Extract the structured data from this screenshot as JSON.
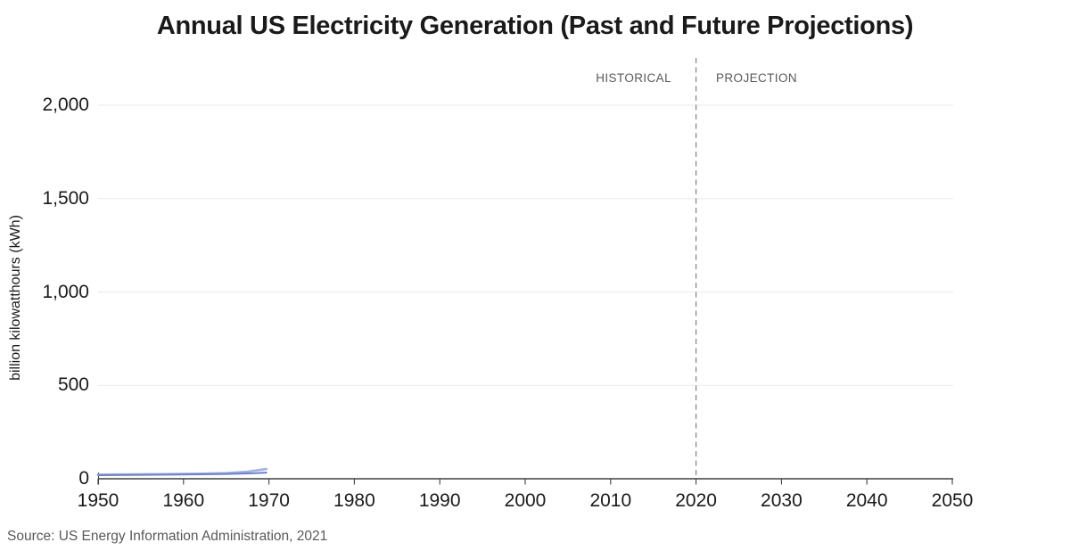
{
  "chart_data": {
    "type": "line",
    "title": "Annual US Electricity Generation (Past and Future Projections)",
    "xlabel": "",
    "ylabel": "billion kilowatthours (kWh)",
    "source": "Source: US Energy Information Administration, 2021",
    "xlim": [
      1950,
      2050
    ],
    "ylim": [
      0,
      2000
    ],
    "x_ticks": [
      1950,
      1960,
      1970,
      1980,
      1990,
      2000,
      2010,
      2020,
      2030,
      2040,
      2050
    ],
    "y_ticks": [
      0,
      500,
      1000,
      1500,
      2000
    ],
    "y_tick_labels": [
      "0",
      "500",
      "1,000",
      "1,500",
      "2,000"
    ],
    "grid": "horizontal gridlines on",
    "legend": "none",
    "divider": {
      "x": 2020,
      "style": "dashed",
      "color": "#7f7f7f",
      "left_label": "HISTORICAL",
      "right_label": "PROJECTION"
    },
    "series": [
      {
        "name": "generation-line-light",
        "color": "#a2b1e0",
        "width": 2.6,
        "x": [
          1950,
          1954,
          1958,
          1962,
          1965,
          1967.5,
          1969.7
        ],
        "values": [
          22,
          24,
          25,
          27,
          30,
          38,
          52
        ]
      },
      {
        "name": "generation-line-dark",
        "color": "#6e82c6",
        "width": 2,
        "x": [
          1950,
          1954,
          1958,
          1962,
          1965,
          1968,
          1969.7
        ],
        "values": [
          19,
          20,
          22,
          24,
          26,
          29,
          33
        ]
      }
    ],
    "colors": {
      "title": "#1a1a1a",
      "axis": "#404040",
      "gridline": "#e9e9e9",
      "tick_label": "#1a1a1a",
      "zone_label": "#595959",
      "source": "#595959"
    }
  }
}
